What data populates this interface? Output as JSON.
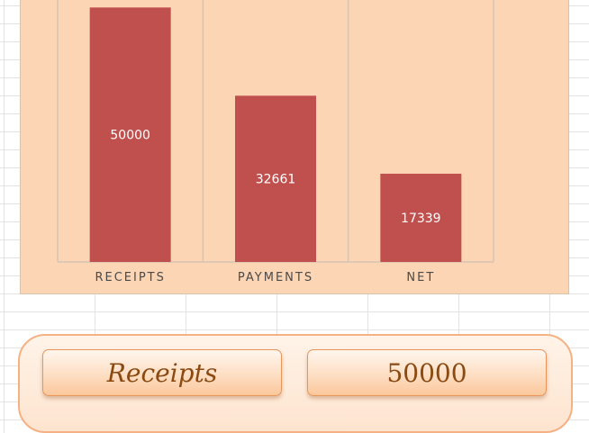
{
  "chart_data": {
    "type": "bar",
    "categories": [
      "RECEIPTS",
      "PAYMENTS",
      "NET"
    ],
    "values": [
      50000,
      32661,
      17339
    ],
    "title": "",
    "xlabel": "",
    "ylabel": "",
    "ylim": [
      0,
      52000
    ],
    "grid": true,
    "legend": "none",
    "bar_color": "#c0504d",
    "background_color": "#fcd5b4"
  },
  "summary": {
    "label": "Receipts",
    "value": "50000"
  }
}
